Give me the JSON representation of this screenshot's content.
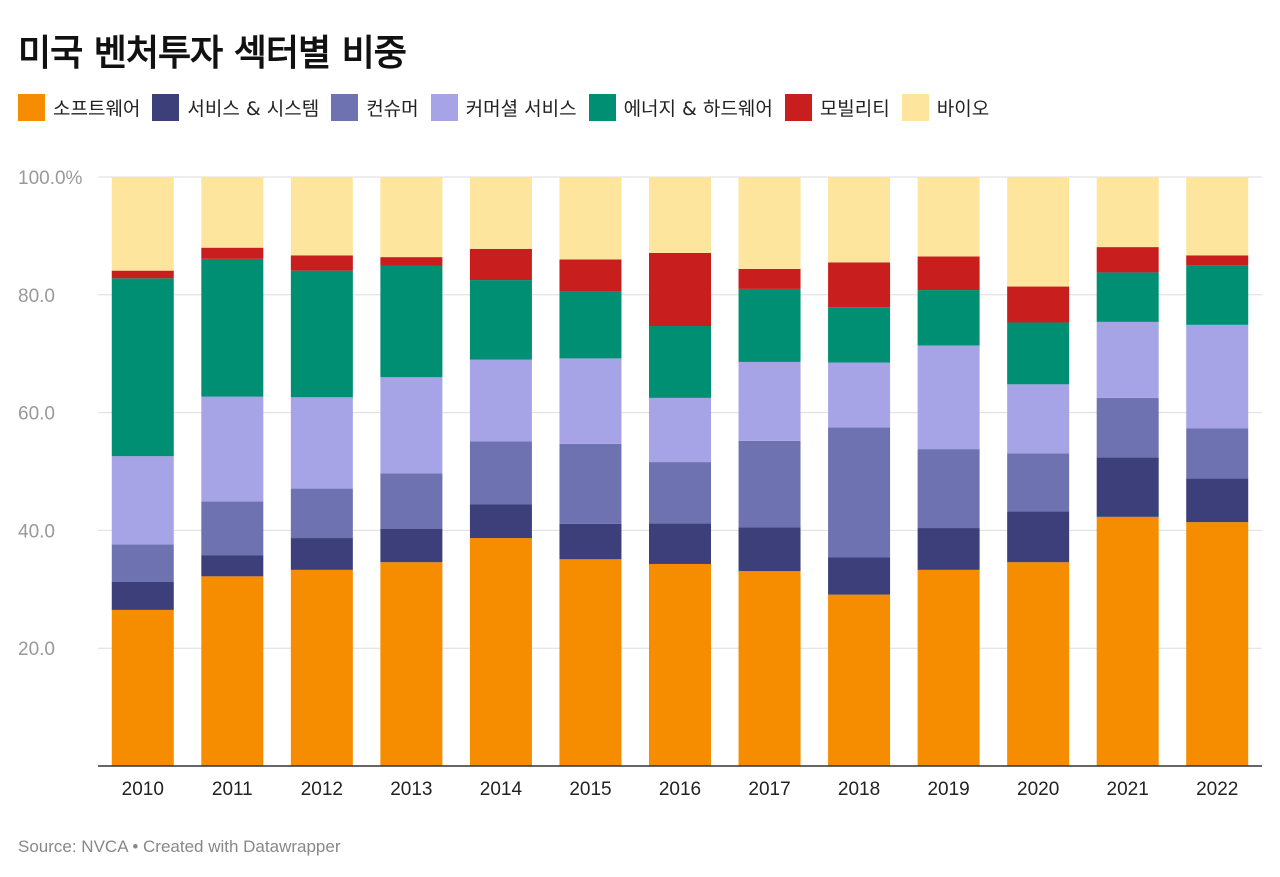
{
  "title": "미국 벤처투자 섹터별 비중",
  "footer": "Source: NVCA • Created with Datawrapper",
  "chart_data": {
    "type": "bar",
    "stacked": true,
    "title": "미국 벤처투자 섹터별 비중",
    "categories": [
      "2010",
      "2011",
      "2012",
      "2013",
      "2014",
      "2015",
      "2016",
      "2017",
      "2018",
      "2019",
      "2020",
      "2021",
      "2022"
    ],
    "ylim": [
      0,
      100
    ],
    "y_ticks": [
      {
        "value": 20,
        "label": "20.0"
      },
      {
        "value": 40,
        "label": "40.0"
      },
      {
        "value": 60,
        "label": "60.0"
      },
      {
        "value": 80,
        "label": "80.0"
      },
      {
        "value": 100,
        "label": "100.0%"
      }
    ],
    "grid": true,
    "legend_position": "top",
    "series": [
      {
        "name": "소프트웨어",
        "color": "#f68c00",
        "values": [
          26.5,
          32.2,
          33.3,
          34.6,
          38.7,
          35.1,
          34.3,
          33.1,
          29.1,
          33.3,
          34.6,
          42.3,
          41.4
        ]
      },
      {
        "name": "서비스 & 시스템",
        "color": "#3c3f7a",
        "values": [
          4.8,
          3.6,
          5.4,
          5.7,
          5.7,
          6.0,
          6.9,
          7.4,
          6.3,
          7.1,
          8.6,
          10.1,
          7.4
        ]
      },
      {
        "name": "컨슈머",
        "color": "#6f72b1",
        "values": [
          6.3,
          9.1,
          8.4,
          9.4,
          10.7,
          13.6,
          10.4,
          14.7,
          22.1,
          13.4,
          9.9,
          10.1,
          8.5
        ]
      },
      {
        "name": "커머셜 서비스",
        "color": "#a6a4e6",
        "values": [
          15.0,
          17.8,
          15.5,
          16.3,
          13.9,
          14.5,
          10.9,
          13.4,
          11.0,
          17.6,
          11.7,
          12.9,
          17.6
        ]
      },
      {
        "name": "에너지 & 하드웨어",
        "color": "#008f72",
        "values": [
          30.2,
          23.4,
          21.5,
          18.9,
          13.5,
          11.3,
          12.2,
          12.4,
          9.4,
          9.4,
          10.5,
          8.4,
          10.1
        ]
      },
      {
        "name": "모빌리티",
        "color": "#c91e1e",
        "values": [
          1.3,
          1.9,
          2.6,
          1.5,
          5.3,
          5.5,
          12.4,
          3.4,
          7.6,
          5.7,
          6.1,
          4.3,
          1.7
        ]
      },
      {
        "name": "바이오",
        "color": "#fee59d",
        "values": [
          15.9,
          12.0,
          13.3,
          13.6,
          12.2,
          14.0,
          12.9,
          15.6,
          14.5,
          13.5,
          18.6,
          11.9,
          13.3
        ]
      }
    ]
  }
}
